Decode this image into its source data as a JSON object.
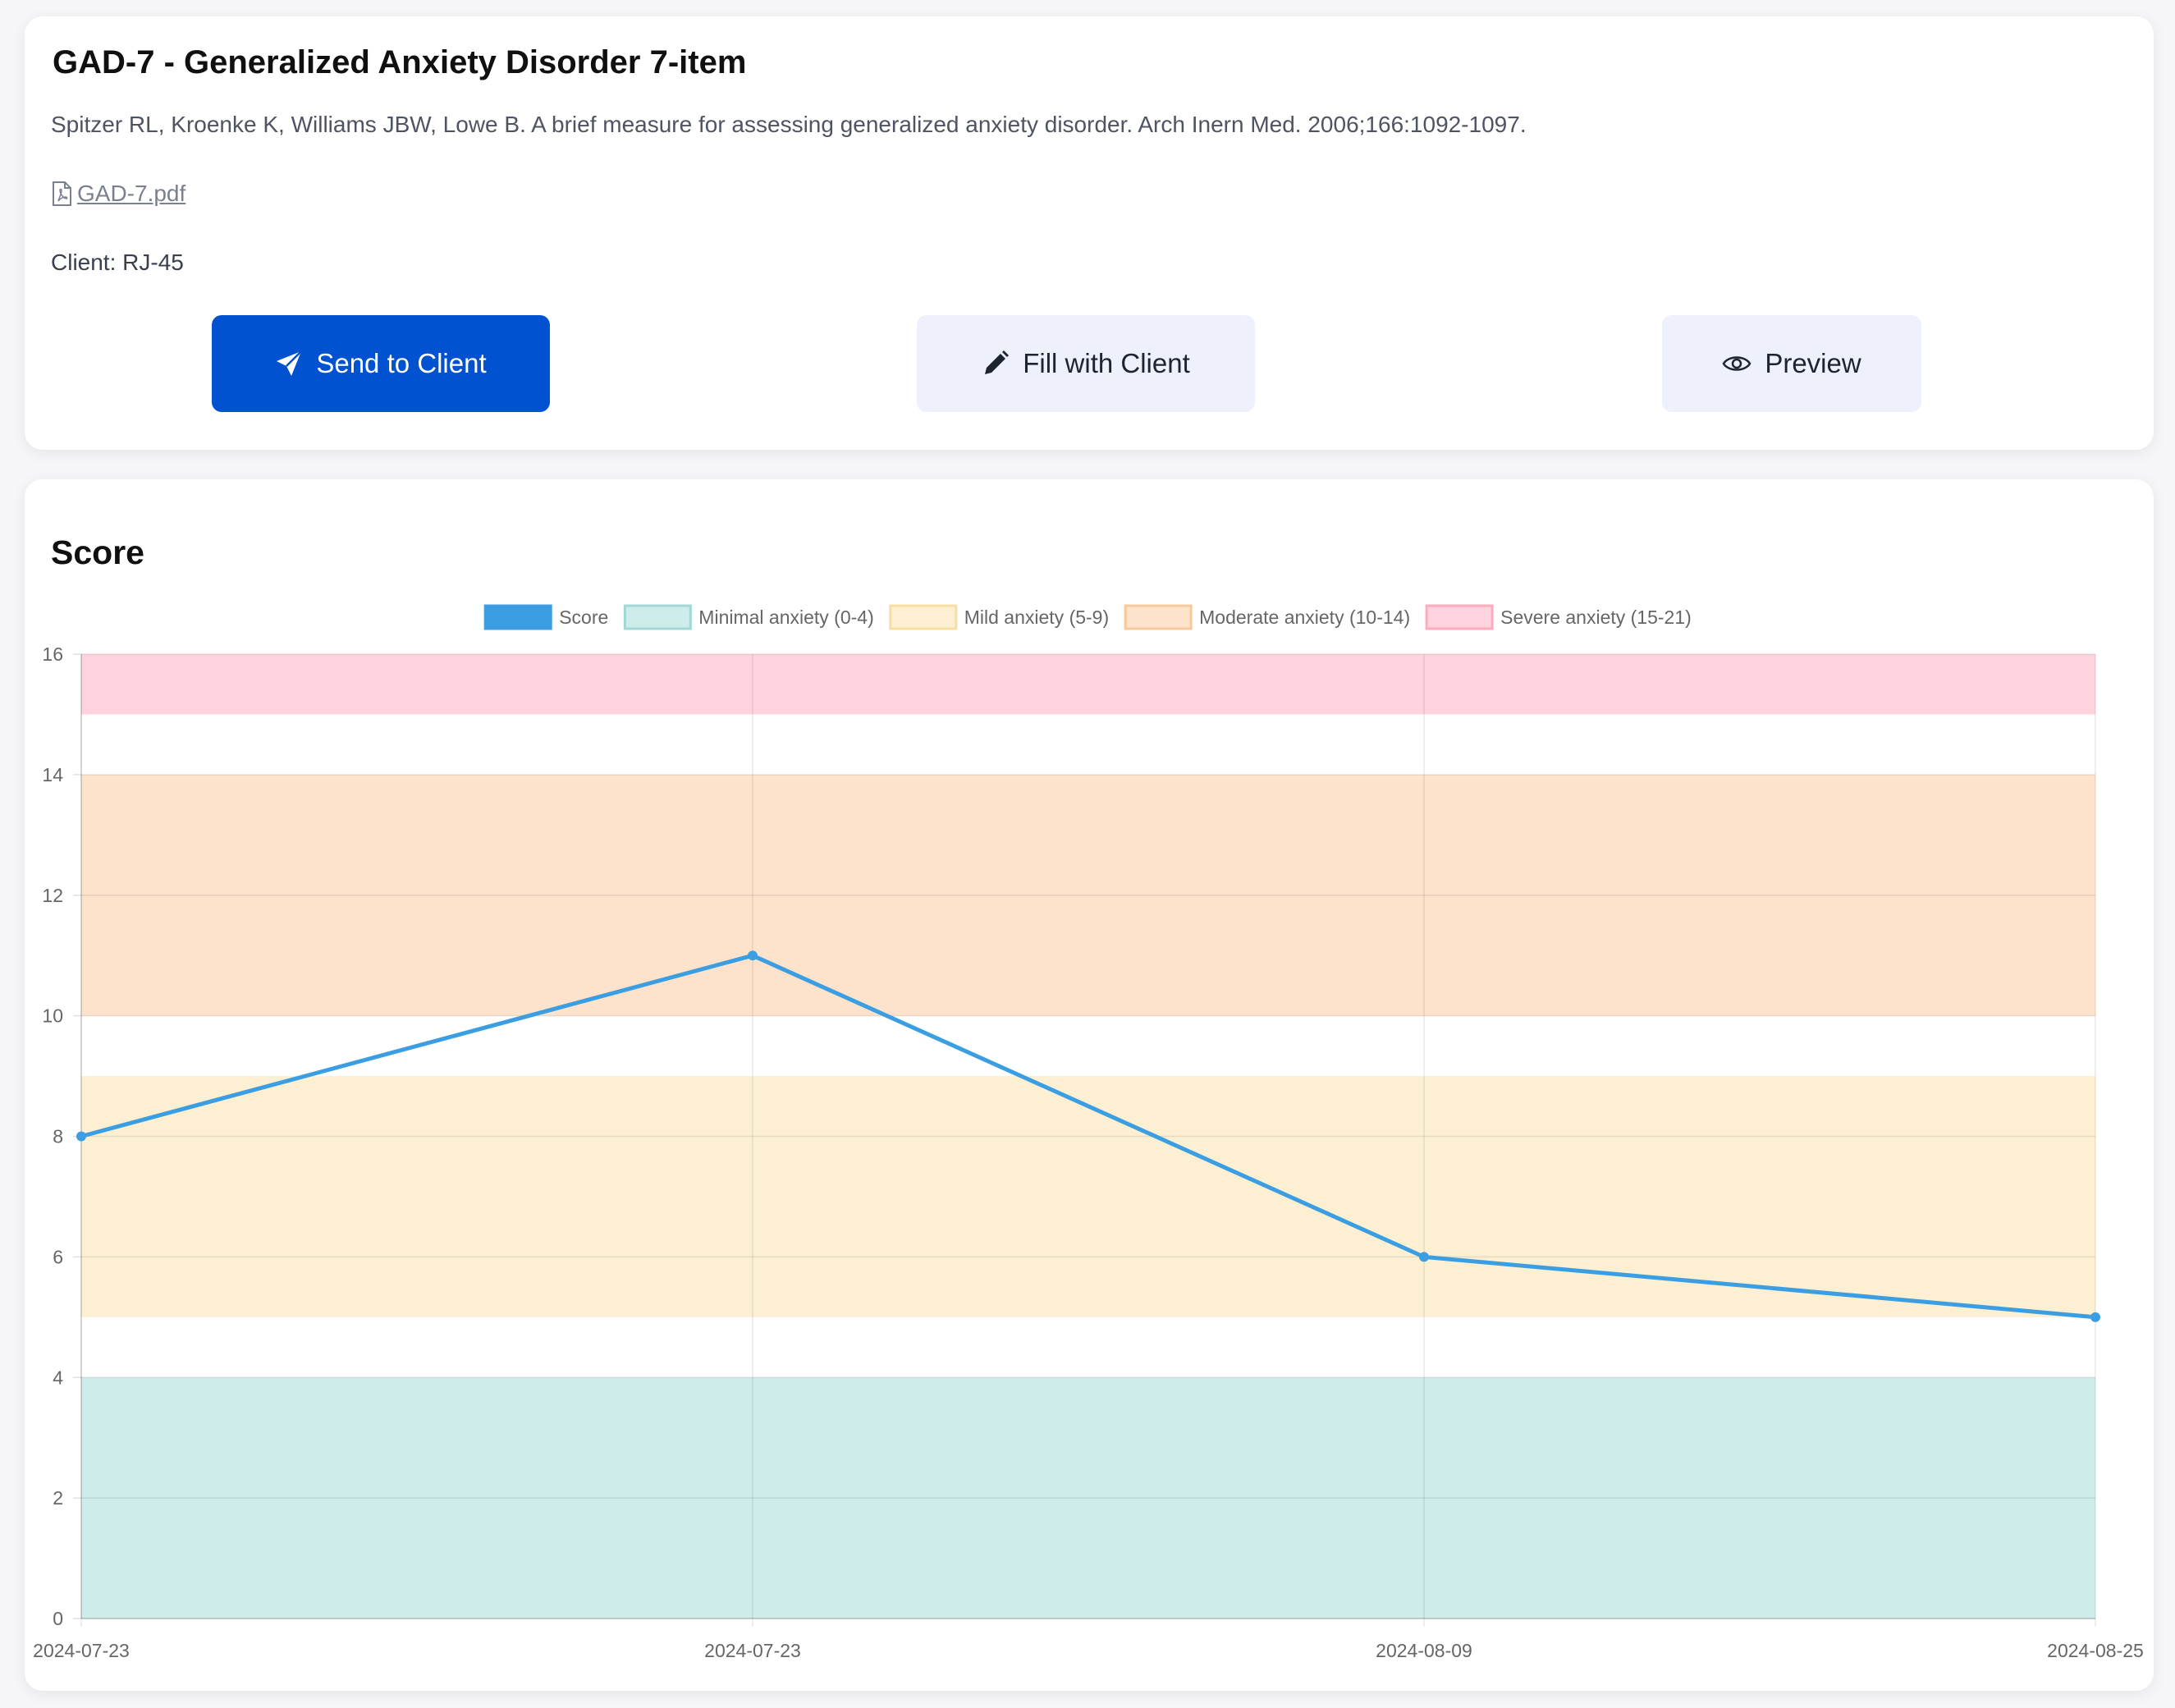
{
  "form": {
    "title": "GAD-7 - Generalized Anxiety Disorder 7-item",
    "citation": "Spitzer RL, Kroenke K, Williams JBW, Lowe B. A brief measure for assessing generalized anxiety disorder. Arch Inern Med. 2006;166:1092-1097.",
    "file_link": "GAD-7.pdf",
    "client": "Client: RJ-45"
  },
  "buttons": {
    "send": "Send to Client",
    "fill": "Fill with Client",
    "preview": "Preview"
  },
  "icons": {
    "file": "pdf-file-icon",
    "send": "paper-plane-icon",
    "fill": "pencil-icon",
    "preview": "eye-icon"
  },
  "colors": {
    "primary": "#0052d0",
    "secondary_bg": "#eef0fb",
    "score_line": "#3b9ee2"
  },
  "chart_section": {
    "title": "Score"
  },
  "chart_data": {
    "type": "line",
    "title": "",
    "xlabel": "",
    "ylabel": "",
    "x": [
      "2024-07-23",
      "2024-07-23",
      "2024-08-09",
      "2024-08-25"
    ],
    "ylim": [
      0,
      16
    ],
    "y_ticks": [
      0,
      2,
      4,
      6,
      8,
      10,
      12,
      14,
      16
    ],
    "grid": true,
    "legend_position": "top-center",
    "series": [
      {
        "name": "Score",
        "values": [
          8,
          11,
          6,
          5
        ],
        "color": "#3b9ee2"
      }
    ],
    "bands": [
      {
        "name": "Minimal anxiety (0-4)",
        "from": 0,
        "to": 4,
        "fill": "#cdecea",
        "stroke": "#9fd8d4"
      },
      {
        "name": "Mild anxiety (5-9)",
        "from": 5,
        "to": 9,
        "fill": "#fdf0d2",
        "stroke": "#f8dfa0"
      },
      {
        "name": "Moderate anxiety (10-14)",
        "from": 10,
        "to": 14,
        "fill": "#fde3cb",
        "stroke": "#f8c89a"
      },
      {
        "name": "Severe anxiety (15-21)",
        "from": 15,
        "to": 21,
        "fill": "#ffd3dd",
        "stroke": "#ffaabd"
      }
    ]
  }
}
